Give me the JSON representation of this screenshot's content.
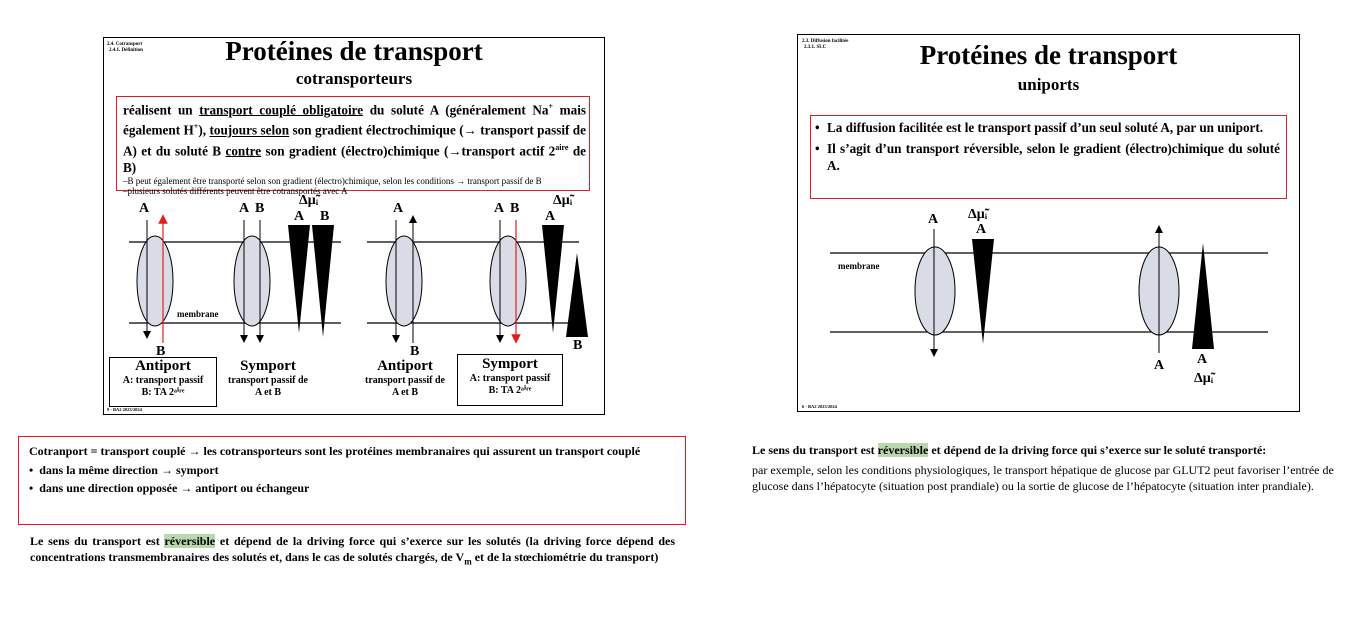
{
  "left_slide": {
    "breadcrumb_1": "2.4. Cotransport",
    "breadcrumb_2": "2.4.1. Définition",
    "title": "Protéines de transport",
    "subtitle": "cotransporteurs",
    "definition": {
      "p1": "réalisent un ",
      "p2": "transport couplé obligatoire",
      "p3": " du soluté A (généralement Na",
      "p3_sup": "+",
      "p4": " mais également H",
      "p4_sup": "+",
      "p5": "), ",
      "p6": "toujours selon",
      "p7": " son gradient électrochimique (→ transport passif de A) et du soluté B ",
      "p8": "contre",
      "p9": " son gradient (électro)chimique (→transport actif 2",
      "p9_sup": "aire",
      "p10": " de B)",
      "note_1": "–B peut également être transporté selon son gradient (électro)chimique, selon les conditions → transport passif de B",
      "note_2": "–plusieurs solutés différents peuvent être cotransportés avec A"
    },
    "diagram": {
      "membrane_label": "membrane",
      "gradient_label": "Δμ̃ᵢ",
      "label_A": "A",
      "label_B": "B",
      "antiport_1": {
        "name": "Antiport",
        "line1": "A: transport passif",
        "line2": "B: TA 2ᵃⁱʳᵉ"
      },
      "symport_1": {
        "name": "Symport",
        "line1": "transport passif de",
        "line2": "A et B"
      },
      "antiport_2": {
        "name": "Antiport",
        "line1": "transport passif de",
        "line2": "A et B"
      },
      "symport_2": {
        "name": "Symport",
        "line1": "A: transport passif",
        "line2": "B: TA 2ᵃⁱʳᵉ"
      }
    },
    "footer": "9 - BA2 2023/2024"
  },
  "left_notes": {
    "box_intro": "Cotranport = transport couplé → les cotransporteurs sont les protéines membranaires qui assurent un transport couplé",
    "bullet_1": "dans la même direction → symport",
    "bullet_2": "dans une direction opposée → antiport ou échangeur",
    "bullet_marker": "•",
    "para_a": "Le sens du transport est ",
    "para_hl": "réversible",
    "para_b": " et dépend de la driving force qui s’exerce sur les solutés (la driving force dépend des concentrations transmembranaires des solutés et, dans le cas de solutés chargés, de V",
    "para_sub": "m",
    "para_c": " et de la stœchiométrie du transport)"
  },
  "right_slide": {
    "breadcrumb_1": "2.3. Diffusion facilitée",
    "breadcrumb_2": "2.3.1. SLC",
    "title": "Protéines de transport",
    "subtitle": "uniports",
    "bullet_1": "La diffusion facilitée est le transport passif d’un seul soluté A, par un uniport.",
    "bullet_2": "Il s’agit d’un transport réversible, selon le gradient (électro)chimique du soluté A.",
    "bullet_marker": "•",
    "membrane_label": "membrane",
    "gradient_label": "Δμ̃ᵢ",
    "label_A": "A",
    "footer": "6 - BA2 2023/2024"
  },
  "right_notes": {
    "para1_a": "Le sens du transport est ",
    "para1_hl": "réversible",
    "para1_b": " et dépend de la driving force qui s’exerce sur le soluté transporté:",
    "para2": "par exemple, selon les conditions physiologiques, le transport hépatique de glucose par GLUT2 peut  favoriser l’entrée de glucose dans l’hépatocyte (situation post prandiale) ou la sortie de glucose de l’hépatocyte (situation inter prandiale)."
  },
  "colors": {
    "red_border": "#e02020",
    "highlight": "#b9d8ae",
    "carrier_fill": "#d9dbe6",
    "red_arrow": "#e02020"
  }
}
